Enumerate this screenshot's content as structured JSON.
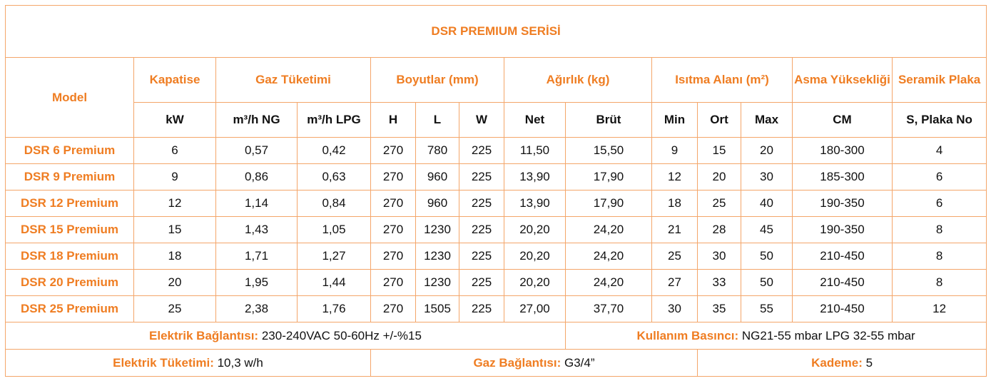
{
  "title": "DSR PREMIUM SERİSİ",
  "group_headers": [
    "Model",
    "Kapatise",
    "Gaz Tüketimi",
    "Boyutlar (mm)",
    "Ağırlık (kg)",
    "Isıtma Alanı (m²)",
    "Asma Yüksekliği",
    "Seramik Plaka"
  ],
  "sub_headers": [
    "kW",
    "m³/h NG",
    "m³/h LPG",
    "H",
    "L",
    "W",
    "Net",
    "Brüt",
    "Min",
    "Ort",
    "Max",
    "CM",
    "S, Plaka No"
  ],
  "rows": [
    [
      "DSR 6 Premium",
      "6",
      "0,57",
      "0,42",
      "270",
      "780",
      "225",
      "11,50",
      "15,50",
      "9",
      "15",
      "20",
      "180-300",
      "4"
    ],
    [
      "DSR 9 Premium",
      "9",
      "0,86",
      "0,63",
      "270",
      "960",
      "225",
      "13,90",
      "17,90",
      "12",
      "20",
      "30",
      "185-300",
      "6"
    ],
    [
      "DSR 12 Premium",
      "12",
      "1,14",
      "0,84",
      "270",
      "960",
      "225",
      "13,90",
      "17,90",
      "18",
      "25",
      "40",
      "190-350",
      "6"
    ],
    [
      "DSR 15 Premium",
      "15",
      "1,43",
      "1,05",
      "270",
      "1230",
      "225",
      "20,20",
      "24,20",
      "21",
      "28",
      "45",
      "190-350",
      "8"
    ],
    [
      "DSR 18 Premium",
      "18",
      "1,71",
      "1,27",
      "270",
      "1230",
      "225",
      "20,20",
      "24,20",
      "25",
      "30",
      "50",
      "210-450",
      "8"
    ],
    [
      "DSR 20 Premium",
      "20",
      "1,95",
      "1,44",
      "270",
      "1230",
      "225",
      "20,20",
      "24,20",
      "27",
      "33",
      "50",
      "210-450",
      "8"
    ],
    [
      "DSR 25 Premium",
      "25",
      "2,38",
      "1,76",
      "270",
      "1505",
      "225",
      "27,00",
      "37,70",
      "30",
      "35",
      "55",
      "210-450",
      "12"
    ]
  ],
  "footer": [
    [
      {
        "label": "Elektrik Bağlantısı:",
        "value": "230-240VAC 50-60Hz +/-%15"
      },
      {
        "label": "Kullanım Basıncı:",
        "value": "NG21-55 mbar LPG 32-55 mbar"
      }
    ],
    [
      {
        "label": "Elektrik Tüketimi:",
        "value": "10,3 w/h"
      },
      {
        "label": "Gaz Bağlantısı:",
        "value": "G3/4”"
      },
      {
        "label": "Kademe:",
        "value": "5"
      }
    ]
  ]
}
